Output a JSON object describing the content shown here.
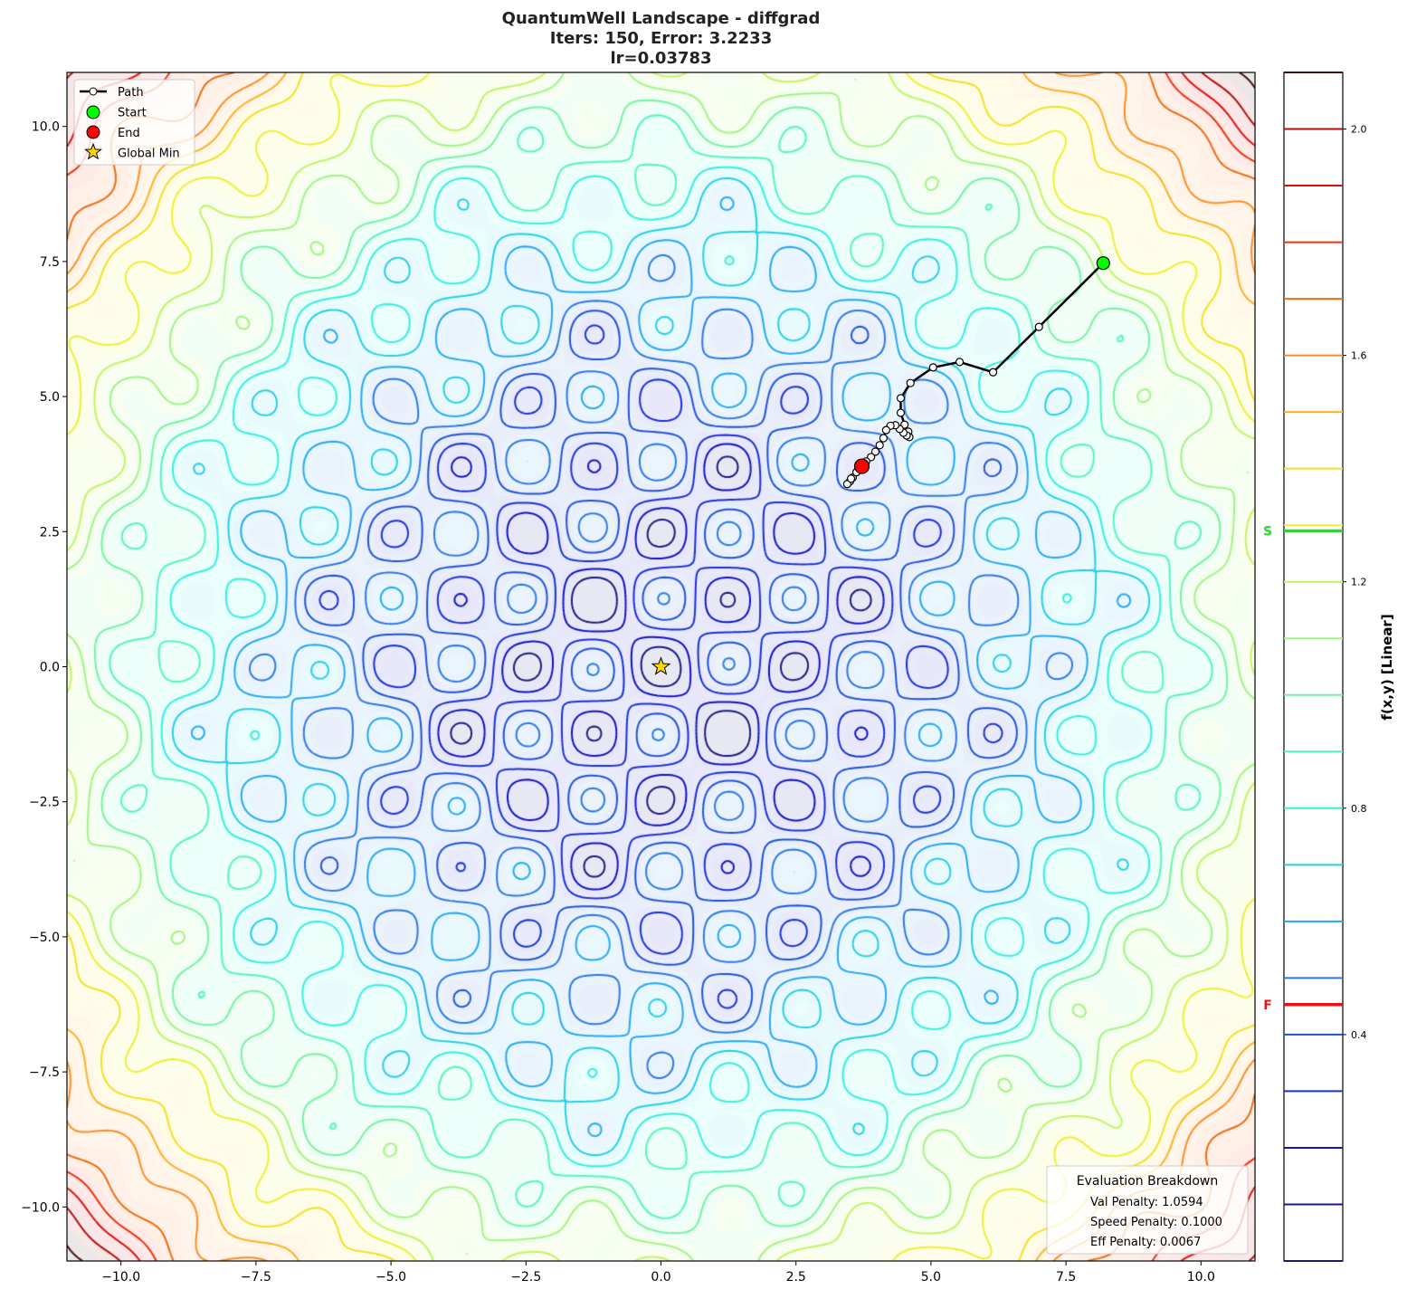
{
  "chart_data": {
    "type": "contour",
    "title_lines": [
      "QuantumWell Landscape - diffgrad",
      "Iters: 150, Error: 3.2233",
      "lr=0.03783"
    ],
    "xlim": [
      -11,
      11
    ],
    "ylim": [
      -11,
      11
    ],
    "x_ticks": [
      -10.0,
      -7.5,
      -5.0,
      -2.5,
      0.0,
      2.5,
      5.0,
      7.5,
      10.0
    ],
    "x_tick_labels": [
      "−10.0",
      "−7.5",
      "−5.0",
      "−2.5",
      "0.0",
      "2.5",
      "5.0",
      "7.5",
      "10.0"
    ],
    "y_ticks": [
      10.0,
      7.5,
      5.0,
      2.5,
      0.0,
      -2.5,
      -5.0,
      -7.5,
      -10.0
    ],
    "y_tick_labels": [
      "10.0",
      "7.5",
      "5.0",
      "2.5",
      "0.0",
      "−2.5",
      "−5.0",
      "−7.5",
      "−10.0"
    ],
    "contour_levels": [
      0.1,
      0.2,
      0.3,
      0.4,
      0.5,
      0.6,
      0.7,
      0.8,
      0.9,
      1.0,
      1.1,
      1.2,
      1.3,
      1.4,
      1.5,
      1.6,
      1.7,
      1.8,
      1.9,
      2.0,
      2.1
    ],
    "level_colors": [
      "#1a1a80",
      "#1212c0",
      "#1a2fd6",
      "#1f50d8",
      "#2a78e6",
      "#22a8f0",
      "#20d0e8",
      "#30f0e0",
      "#50f5c0",
      "#70f5a0",
      "#a0f580",
      "#c0f560",
      "#eef030",
      "#f5e020",
      "#ffb020",
      "#ff8c20",
      "#f06a10",
      "#f03010",
      "#dd1010",
      "#b01010",
      "#401010"
    ],
    "colorbar": {
      "label": "f(x,y) [Linear]",
      "range": [
        0.0,
        2.1
      ],
      "ticks": [
        2.0,
        1.6,
        1.2,
        0.8,
        0.4
      ],
      "tick_labels": [
        "2.0",
        "1.6",
        "1.2",
        "0.8",
        "0.4"
      ],
      "markers": [
        {
          "label": "S",
          "value": 1.29,
          "color": "#22dd22"
        },
        {
          "label": "F",
          "value": 0.453,
          "color": "#ee1111"
        }
      ]
    },
    "path": {
      "x": [
        8.19,
        7.0,
        6.15,
        5.53,
        5.04,
        4.62,
        4.44,
        4.44,
        4.51,
        4.58,
        4.6,
        4.55,
        4.49,
        4.42,
        4.34,
        4.25,
        4.17,
        4.12,
        4.05,
        3.97,
        3.89,
        3.8,
        3.72,
        3.62,
        3.55,
        3.5,
        3.45,
        3.52,
        3.62,
        3.72
      ],
      "y": [
        7.47,
        6.29,
        5.45,
        5.64,
        5.54,
        5.25,
        4.97,
        4.7,
        4.48,
        4.35,
        4.25,
        4.28,
        4.33,
        4.4,
        4.47,
        4.46,
        4.38,
        4.23,
        4.1,
        3.98,
        3.88,
        3.8,
        3.71,
        3.6,
        3.5,
        3.43,
        3.38,
        3.48,
        3.6,
        3.71
      ]
    },
    "start": {
      "x": 8.19,
      "y": 7.47
    },
    "end": {
      "x": 3.72,
      "y": 3.71
    },
    "global_min": {
      "x": 0.0,
      "y": 0.0
    },
    "legend": {
      "placement": "top-left",
      "entries": [
        "Path",
        "Start",
        "End",
        "Global Min"
      ]
    },
    "colors": {
      "path": "#000000",
      "start": "#00ff00",
      "end": "#ff0000",
      "global_min": "#ffd700"
    },
    "eval_box": {
      "title": "Evaluation Breakdown",
      "lines": [
        "Val Penalty: 1.0594",
        "Speed Penalty: 0.1000",
        "Eff Penalty: 0.0067"
      ],
      "placement": "bottom-right"
    }
  }
}
